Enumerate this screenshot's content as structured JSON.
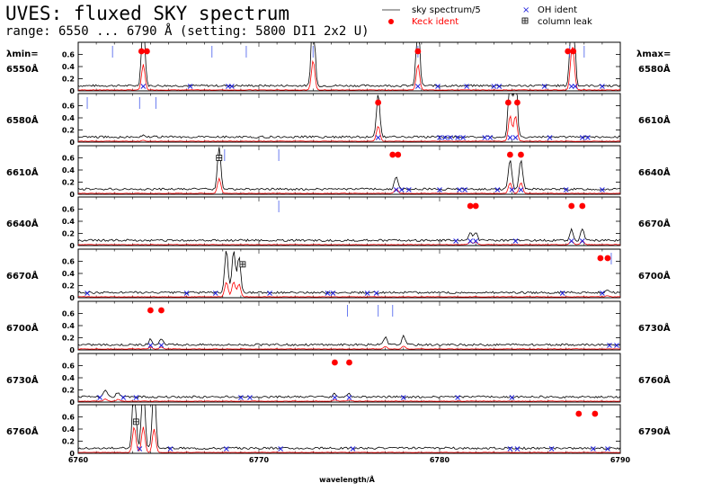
{
  "header": {
    "title": "UVES: fluxed SKY spectrum",
    "subtitle": "range: 6550 ... 6790 Å (setting: 5800 DI1 2x2 U)"
  },
  "legend": {
    "items": [
      {
        "label": "sky spectrum/5",
        "symbol": "line",
        "color": "#555555"
      },
      {
        "label": "Keck ident",
        "symbol": "dot",
        "color": "#ff0000"
      },
      {
        "label": "OH ident",
        "symbol": "cross",
        "color": "#2222dd"
      },
      {
        "label": "column leak",
        "symbol": "boxed-plus",
        "color": "#000000"
      }
    ]
  },
  "side_labels": {
    "left_header": "λmin=",
    "right_header": "λmax="
  },
  "colors": {
    "spectrum": "#000000",
    "spectrum_scaled": "#ff0000",
    "keck": "#ff0000",
    "oh": "#2222dd",
    "tick_marks": "#6a7cf0"
  },
  "chart_data": {
    "type": "line",
    "xlabel": "wavelength/Å",
    "bottom_xticks": [
      6760,
      6770,
      6780,
      6790
    ],
    "yticks": [
      0,
      0.2,
      0.4,
      0.6
    ],
    "ylim": [
      0,
      0.8
    ],
    "panels": [
      {
        "lambda_min": "6550Å",
        "lambda_max": "6580Å",
        "xlim": [
          6550,
          6580
        ],
        "lines": [
          {
            "x": 6553.6,
            "h": 1.2
          },
          {
            "x": 6563.0,
            "h": 1.4
          },
          {
            "x": 6568.8,
            "h": 1.2
          },
          {
            "x": 6577.3,
            "h": 1.2
          },
          {
            "x": 6577.4,
            "h": 1.2
          }
        ],
        "keck": [
          6553.5,
          6553.8,
          6568.8,
          6577.1,
          6577.4
        ],
        "oh": [
          6553.6,
          6556.2,
          6558.3,
          6558.5,
          6568.8,
          6569.9,
          6571.5,
          6573.0,
          6573.3,
          6575.8,
          6577.3,
          6577.5,
          6579.0
        ],
        "ticks": [
          6551.9,
          6557.4,
          6559.3,
          6563.0,
          6568.8,
          6577.2,
          6578.0
        ]
      },
      {
        "lambda_min": "6580Å",
        "lambda_max": "6610Å",
        "xlim": [
          6580,
          6610
        ],
        "lines": [
          {
            "x": 6596.6,
            "h": 0.72
          },
          {
            "x": 6603.9,
            "h": 1.2
          },
          {
            "x": 6604.2,
            "h": 1.2
          },
          {
            "x": 6583.6,
            "h": 0.04
          }
        ],
        "keck": [
          6596.6,
          6603.8,
          6604.3
        ],
        "oh": [
          6596.6,
          6600.0,
          6600.3,
          6600.6,
          6601.0,
          6601.3,
          6602.5,
          6602.8,
          6603.9,
          6604.2,
          6606.1,
          6607.9,
          6608.2
        ],
        "ticks": [
          6580.5,
          6583.4,
          6584.3
        ]
      },
      {
        "lambda_min": "6610Å",
        "lambda_max": "6640Å",
        "xlim": [
          6610,
          6640
        ],
        "lines": [
          {
            "x": 6617.8,
            "h": 0.7
          },
          {
            "x": 6627.6,
            "h": 0.22
          },
          {
            "x": 6633.9,
            "h": 0.5
          },
          {
            "x": 6634.5,
            "h": 0.5
          }
        ],
        "keck": [
          6627.4,
          6627.7,
          6633.9,
          6634.5
        ],
        "oh": [
          6627.6,
          6627.9,
          6628.3,
          6630.0,
          6631.1,
          6631.4,
          6633.2,
          6634.0,
          6634.5,
          6637.0,
          6639.0
        ],
        "ticks": [
          6618.1,
          6621.1
        ],
        "leaks": [
          {
            "x": 6617.8,
            "y": 0.6
          }
        ]
      },
      {
        "lambda_min": "6640Å",
        "lambda_max": "6670Å",
        "xlim": [
          6640,
          6670
        ],
        "lines": [
          {
            "x": 6661.7,
            "h": 0.13
          },
          {
            "x": 6662.0,
            "h": 0.13
          },
          {
            "x": 6667.3,
            "h": 0.18
          },
          {
            "x": 6667.9,
            "h": 0.18
          }
        ],
        "keck": [
          6661.7,
          6662.0,
          6667.3,
          6667.9
        ],
        "oh": [
          6660.9,
          6661.7,
          6662.0,
          6664.2,
          6667.3,
          6667.9
        ],
        "ticks": [
          6651.1
        ]
      },
      {
        "lambda_min": "6670Å",
        "lambda_max": "6700Å",
        "xlim": [
          6670,
          6700
        ],
        "lines": [
          {
            "x": 6678.2,
            "h": 0.7
          },
          {
            "x": 6678.6,
            "h": 0.7
          },
          {
            "x": 6678.9,
            "h": 0.6
          },
          {
            "x": 6699.3,
            "h": 0.05
          }
        ],
        "keck": [
          6698.9,
          6699.3
        ],
        "oh": [
          6670.5,
          6676.0,
          6677.6,
          6680.6,
          6683.8,
          6684.1,
          6686.0,
          6686.5,
          6696.8,
          6699.0
        ],
        "ticks": [
          6699.5
        ],
        "leaks": [
          {
            "x": 6679.1,
            "y": 0.55
          }
        ]
      },
      {
        "lambda_min": "6700Å",
        "lambda_max": "6730Å",
        "xlim": [
          6700,
          6730
        ],
        "lines": [
          {
            "x": 6704.0,
            "h": 0.09
          },
          {
            "x": 6704.6,
            "h": 0.09
          },
          {
            "x": 6717.0,
            "h": 0.12
          },
          {
            "x": 6718.0,
            "h": 0.14
          }
        ],
        "keck": [
          6704.0,
          6704.6
        ],
        "oh": [
          6704.0,
          6704.6,
          6729.4,
          6729.8
        ],
        "ticks": [
          6714.9,
          6716.6,
          6717.4
        ]
      },
      {
        "lambda_min": "6730Å",
        "lambda_max": "6760Å",
        "xlim": [
          6730,
          6760
        ],
        "lines": [
          {
            "x": 6731.5,
            "h": 0.1
          },
          {
            "x": 6732.2,
            "h": 0.08
          },
          {
            "x": 6744.2,
            "h": 0.05
          },
          {
            "x": 6745.0,
            "h": 0.05
          }
        ],
        "keck": [
          6744.2,
          6745.0
        ],
        "oh": [
          6731.2,
          6732.5,
          6733.2,
          6739.0,
          6739.5,
          6744.2,
          6745.0,
          6748.0,
          6751.0,
          6754.0
        ],
        "ticks": []
      },
      {
        "lambda_min": "6760Å",
        "lambda_max": "6790Å",
        "xlim": [
          6760,
          6790
        ],
        "lines": [
          {
            "x": 6763.1,
            "h": 1.2
          },
          {
            "x": 6763.6,
            "h": 1.2
          },
          {
            "x": 6764.2,
            "h": 1.1
          }
        ],
        "keck": [
          6787.7,
          6788.6
        ],
        "oh": [
          6763.4,
          6765.1,
          6768.2,
          6771.2,
          6775.2,
          6783.9,
          6784.3,
          6786.2,
          6788.5,
          6789.3
        ],
        "ticks": [],
        "leaks": [
          {
            "x": 6763.2,
            "y": 0.52
          }
        ]
      }
    ]
  }
}
